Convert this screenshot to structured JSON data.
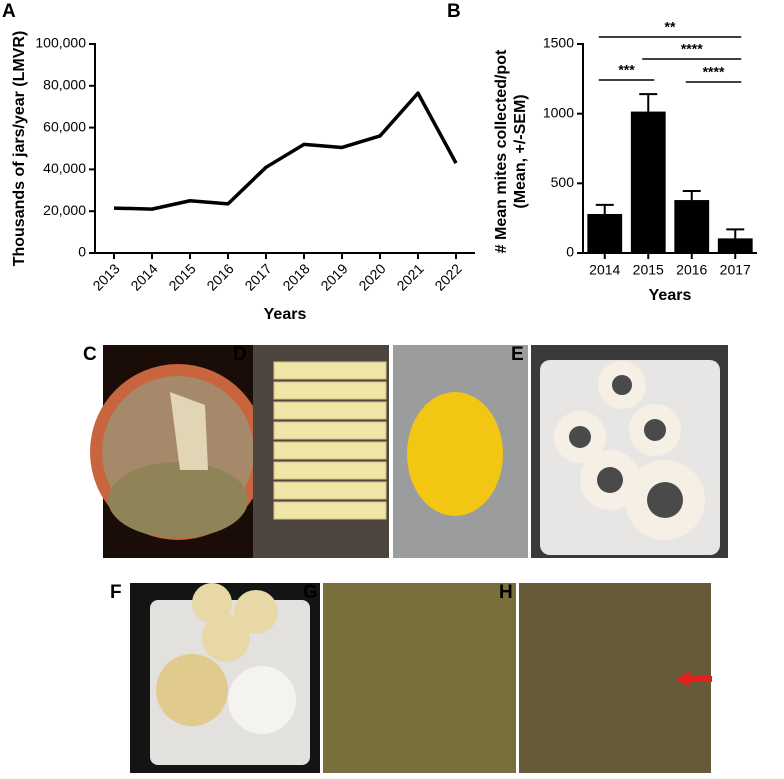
{
  "chart_data": [
    {
      "type": "line",
      "panel_label": "A",
      "y_label": "Thousands of jars/year (LMVR)",
      "x_label": "Years",
      "categories": [
        "2013",
        "2014",
        "2015",
        "2016",
        "2017",
        "2018",
        "2019",
        "2020",
        "2021",
        "2022"
      ],
      "values": [
        21500,
        21000,
        25000,
        23500,
        41000,
        52000,
        50500,
        56000,
        76500,
        43000
      ],
      "color": "#000000",
      "ylim": [
        0,
        100000
      ],
      "yticks": [
        0,
        {
          "value": 20000,
          "label": "20,000"
        },
        {
          "value": 40000,
          "label": "40,000"
        },
        {
          "value": 60000,
          "label": "60,000"
        },
        {
          "value": 80000,
          "label": "80,000"
        },
        {
          "value": 100000,
          "label": "100,000"
        }
      ]
    },
    {
      "type": "bar",
      "panel_label": "B",
      "y_label": [
        "# Mean mites collected/pot",
        "(Mean, +/-SEM)"
      ],
      "x_label": "Years",
      "categories": [
        "2014",
        "2015",
        "2016",
        "2017"
      ],
      "values": [
        280,
        1015,
        380,
        105
      ],
      "errors": [
        65,
        125,
        65,
        65
      ],
      "color": "#000000",
      "ylim": [
        0,
        1500
      ],
      "yticks": [
        0,
        500,
        1000,
        1500
      ],
      "annotations": [
        {
          "text": "**",
          "from": "2014",
          "to": "2017"
        },
        {
          "text": "****",
          "from": "2015",
          "to": "2017"
        },
        {
          "text": "***",
          "from": "2014",
          "to": "2015"
        },
        {
          "text": "****",
          "from": "2016",
          "to": "2017"
        }
      ]
    }
  ],
  "figure_panels": [
    {
      "label": "C"
    },
    {
      "label": "D"
    },
    {
      "label": "E"
    },
    {
      "label": "F"
    },
    {
      "label": "G"
    },
    {
      "label": "H"
    }
  ]
}
